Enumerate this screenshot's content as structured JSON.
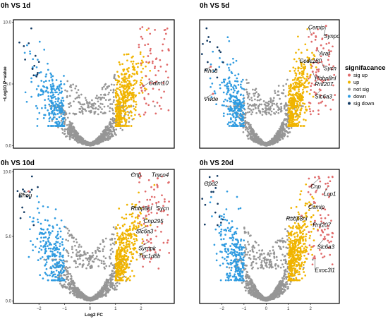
{
  "legend": {
    "title": "signifacance",
    "items": [
      {
        "label": "sig up",
        "color": "#e06a6a"
      },
      {
        "label": "up",
        "color": "#f0b400"
      },
      {
        "label": "not sig",
        "color": "#969696"
      },
      {
        "label": "down",
        "color": "#2f9be0"
      },
      {
        "label": "sig down",
        "color": "#123a63"
      }
    ]
  },
  "chart_data": [
    {
      "type": "scatter",
      "title": "0h VS 1d",
      "ylabel": "−Log10 P−value",
      "xlabel": "",
      "xlim": [
        -3,
        3.3
      ],
      "ylim": [
        -0.2,
        10.2
      ],
      "yticks": [
        {
          "v": 0,
          "label": "0.0"
        },
        {
          "v": 5,
          "label": "5.0"
        },
        {
          "v": 10,
          "label": "10.0"
        }
      ],
      "xticks": [],
      "labels": [
        {
          "text": "Galnt10",
          "x": 2.3,
          "y": 5.1,
          "px": 2.0,
          "py": 4.7
        }
      ],
      "seed": 11
    },
    {
      "type": "scatter",
      "title": "0h VS 5d",
      "ylabel": "",
      "xlabel": "",
      "xlim": [
        -3,
        3.3
      ],
      "ylim": [
        -0.2,
        10.2
      ],
      "yticks": [],
      "xticks": [],
      "labels": [
        {
          "text": "Cemip",
          "x": 1.9,
          "y": 9.6,
          "px": 2.05,
          "py": 9.0
        },
        {
          "text": "Synpo",
          "x": 2.6,
          "y": 8.9,
          "px": 2.7,
          "py": 9.7
        },
        {
          "text": "Araf",
          "x": 2.4,
          "y": 7.5,
          "px": 2.3,
          "py": 7.9
        },
        {
          "text": "Ccdc180",
          "x": 1.5,
          "y": 6.9,
          "px": 2.35,
          "py": 6.7
        },
        {
          "text": "Sycn",
          "x": 2.6,
          "y": 6.3,
          "px": 2.5,
          "py": 6.8
        },
        {
          "text": "Rbbp8nl",
          "x": 2.2,
          "y": 5.5,
          "px": 2.1,
          "py": 6.0
        },
        {
          "text": "Rnf207",
          "x": 2.2,
          "y": 5.0,
          "px": 2.35,
          "py": 5.4
        },
        {
          "text": "Slc6a3",
          "x": 2.2,
          "y": 4.0,
          "px": 2.45,
          "py": 4.5
        },
        {
          "text": "Rhou",
          "x": -2.8,
          "y": 6.1,
          "px": -2.5,
          "py": 6.4
        },
        {
          "text": "Vwde",
          "x": -2.8,
          "y": 3.8,
          "px": -2.4,
          "py": 4.2
        }
      ],
      "seed": 23
    },
    {
      "type": "scatter",
      "title": "0h VS 10d",
      "ylabel": "",
      "xlabel": "Log2 FC",
      "xlim": [
        -3,
        3.3
      ],
      "ylim": [
        -0.2,
        10.2
      ],
      "yticks": [
        {
          "v": 0,
          "label": "0.0"
        },
        {
          "v": 5,
          "label": "5.0"
        },
        {
          "v": 10,
          "label": "10.0"
        }
      ],
      "xticks": [
        {
          "v": -2,
          "label": "−2"
        },
        {
          "v": -1,
          "label": "−1"
        },
        {
          "v": 0,
          "label": "0"
        },
        {
          "v": 1,
          "label": "1"
        },
        {
          "v": 2,
          "label": "2"
        }
      ],
      "labels": [
        {
          "text": "Cnp",
          "x": 1.6,
          "y": 9.8,
          "px": 1.95,
          "py": 9.9
        },
        {
          "text": "Tmco4",
          "x": 2.7,
          "y": 9.8,
          "px": 2.65,
          "py": 9.5
        },
        {
          "text": "Rbbp8nl",
          "x": 1.6,
          "y": 7.2,
          "px": 2.1,
          "py": 7.3
        },
        {
          "text": "Sycn",
          "x": 2.6,
          "y": 7.2,
          "px": 2.6,
          "py": 7.6
        },
        {
          "text": "Cnp295",
          "x": 2.1,
          "y": 6.2,
          "px": 2.2,
          "py": 6.6
        },
        {
          "text": "Slc6a3",
          "x": 1.8,
          "y": 5.4,
          "px": 2.25,
          "py": 5.8
        },
        {
          "text": "Sympk",
          "x": 1.9,
          "y": 4.1,
          "px": 2.3,
          "py": 4.6
        },
        {
          "text": "Tbc1d8b",
          "x": 1.9,
          "y": 3.5,
          "px": 2.25,
          "py": 3.9
        },
        {
          "text": "Rhou",
          "x": -2.8,
          "y": 8.2,
          "px": -2.4,
          "py": 8.5
        }
      ],
      "seed": 37
    },
    {
      "type": "scatter",
      "title": "0h VS 20d",
      "ylabel": "",
      "xlabel": "",
      "xlim": [
        -3,
        3.3
      ],
      "ylim": [
        -0.2,
        10.2
      ],
      "yticks": [],
      "xticks": [
        {
          "v": -2,
          "label": "−2"
        },
        {
          "v": -1,
          "label": "−1"
        },
        {
          "v": 0,
          "label": "0"
        },
        {
          "v": 1,
          "label": "1"
        },
        {
          "v": 2,
          "label": "2"
        }
      ],
      "labels": [
        {
          "text": "Gpd2",
          "x": -2.8,
          "y": 9.1,
          "px": -2.4,
          "py": 9.3
        },
        {
          "text": "Cnp",
          "x": 2.0,
          "y": 8.9,
          "px": 2.4,
          "py": 9.5
        },
        {
          "text": "Lcp1",
          "x": 2.6,
          "y": 8.3,
          "px": 2.8,
          "py": 8.9
        },
        {
          "text": "Cemip",
          "x": 1.9,
          "y": 7.3,
          "px": 2.2,
          "py": 7.6
        },
        {
          "text": "Rbbp8nl",
          "x": 0.9,
          "y": 6.4,
          "px": 1.6,
          "py": 6.6
        },
        {
          "text": "Rnf207",
          "x": 2.1,
          "y": 5.9,
          "px": 2.2,
          "py": 6.2
        },
        {
          "text": "Slc6a3",
          "x": 2.3,
          "y": 4.2,
          "px": 2.6,
          "py": 4.8
        },
        {
          "text": "Exoc3l1",
          "x": 2.2,
          "y": 2.4,
          "px": 2.2,
          "py": 3.3
        }
      ],
      "seed": 51
    }
  ]
}
